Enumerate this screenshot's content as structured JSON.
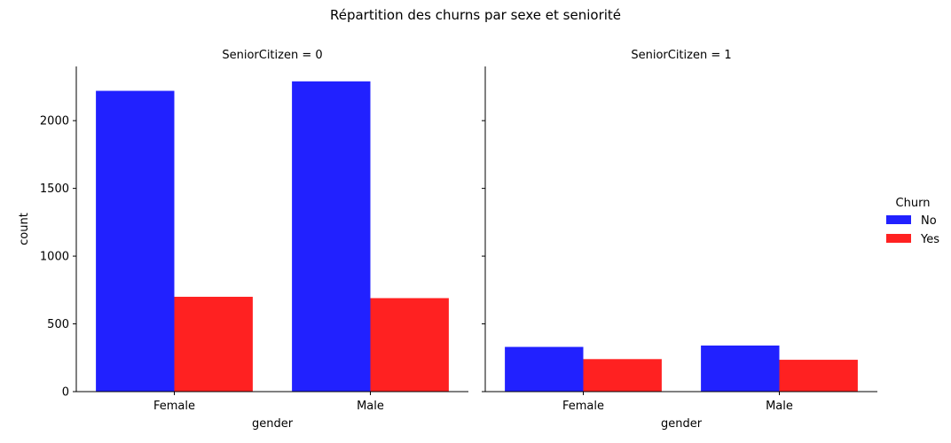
{
  "chart_data": {
    "type": "bar",
    "title": "Répartition des churns par sexe et seniorité",
    "categories": [
      "Female",
      "Male"
    ],
    "hue_title": "Churn",
    "series": [
      {
        "name": "No",
        "color": "#0000ff"
      },
      {
        "name": "Yes",
        "color": "#ff0000"
      }
    ],
    "panels": [
      {
        "title": "SeniorCitizen = 0",
        "xlabel": "gender",
        "ylabel": "count",
        "values": {
          "No": [
            2220,
            2290
          ],
          "Yes": [
            700,
            690
          ]
        }
      },
      {
        "title": "SeniorCitizen = 1",
        "xlabel": "gender",
        "ylabel": "",
        "values": {
          "No": [
            330,
            340
          ],
          "Yes": [
            240,
            235
          ]
        }
      }
    ],
    "ylim": [
      0,
      2400
    ],
    "yticks": [
      0,
      500,
      1000,
      1500,
      2000
    ],
    "legend": {
      "title": "Churn",
      "position": "right",
      "entries": [
        "No",
        "Yes"
      ]
    },
    "grid": false
  }
}
